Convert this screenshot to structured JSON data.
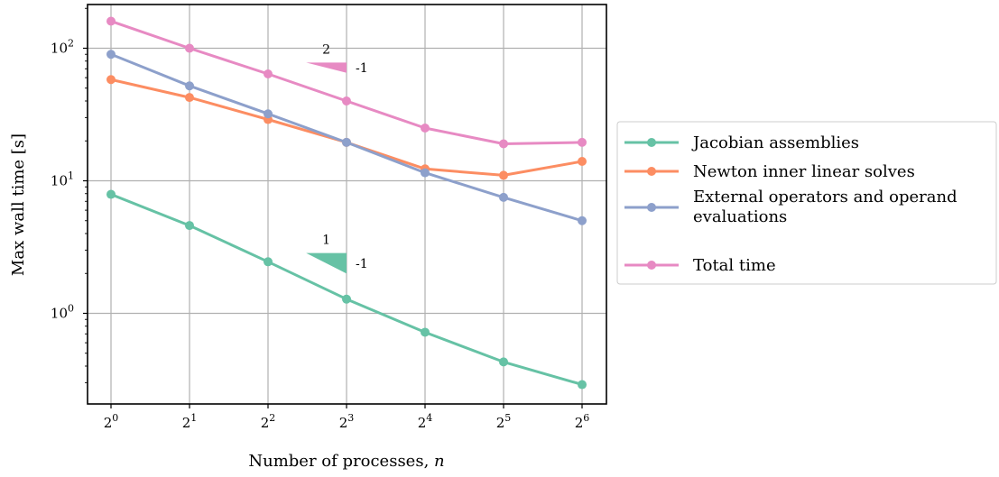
{
  "chart_data": {
    "type": "line",
    "xlabel": "Number of processes, ",
    "xlabel_var": "n",
    "ylabel": "Max wall time [s]",
    "xscale": "log2",
    "yscale": "log10",
    "x": [
      1,
      2,
      4,
      8,
      16,
      32,
      64
    ],
    "x_tick_labels": [
      {
        "base": "2",
        "exp": "0"
      },
      {
        "base": "2",
        "exp": "1"
      },
      {
        "base": "2",
        "exp": "2"
      },
      {
        "base": "2",
        "exp": "3"
      },
      {
        "base": "2",
        "exp": "4"
      },
      {
        "base": "2",
        "exp": "5"
      },
      {
        "base": "2",
        "exp": "6"
      }
    ],
    "y_ticks": [
      1,
      10,
      100
    ],
    "y_tick_labels": [
      {
        "base": "10",
        "exp": "0"
      },
      {
        "base": "10",
        "exp": "1"
      },
      {
        "base": "10",
        "exp": "2"
      }
    ],
    "ylim": [
      0.2,
      215
    ],
    "grid": true,
    "legend_position": "outside-right",
    "series": [
      {
        "name": "Jacobian assemblies",
        "color": "#66c2a5",
        "values": [
          7.9,
          4.6,
          2.45,
          1.28,
          0.72,
          0.43,
          0.29
        ]
      },
      {
        "name": "Newton inner linear solves",
        "color": "#fc8d62",
        "values": [
          58,
          42.5,
          29,
          19.5,
          12.3,
          11,
          14
        ]
      },
      {
        "name": "External operators and operand evaluations",
        "color": "#8da0cb",
        "values": [
          90,
          52,
          32,
          19.5,
          11.5,
          7.5,
          5
        ]
      },
      {
        "name": "Total time",
        "color": "#e78ac3",
        "values": [
          160,
          100,
          64,
          40,
          25,
          19,
          19.5
        ]
      }
    ],
    "slope_triangles": [
      {
        "run_label": "2",
        "rise_label": "-1",
        "color": "#e78ac3",
        "x_range": [
          5.6,
          8
        ],
        "y_top": 78,
        "slope": -0.5
      },
      {
        "run_label": "1",
        "rise_label": "-1",
        "color": "#66c2a5",
        "x_range": [
          5.6,
          8
        ],
        "y_top": 2.85,
        "slope": -1
      }
    ]
  }
}
